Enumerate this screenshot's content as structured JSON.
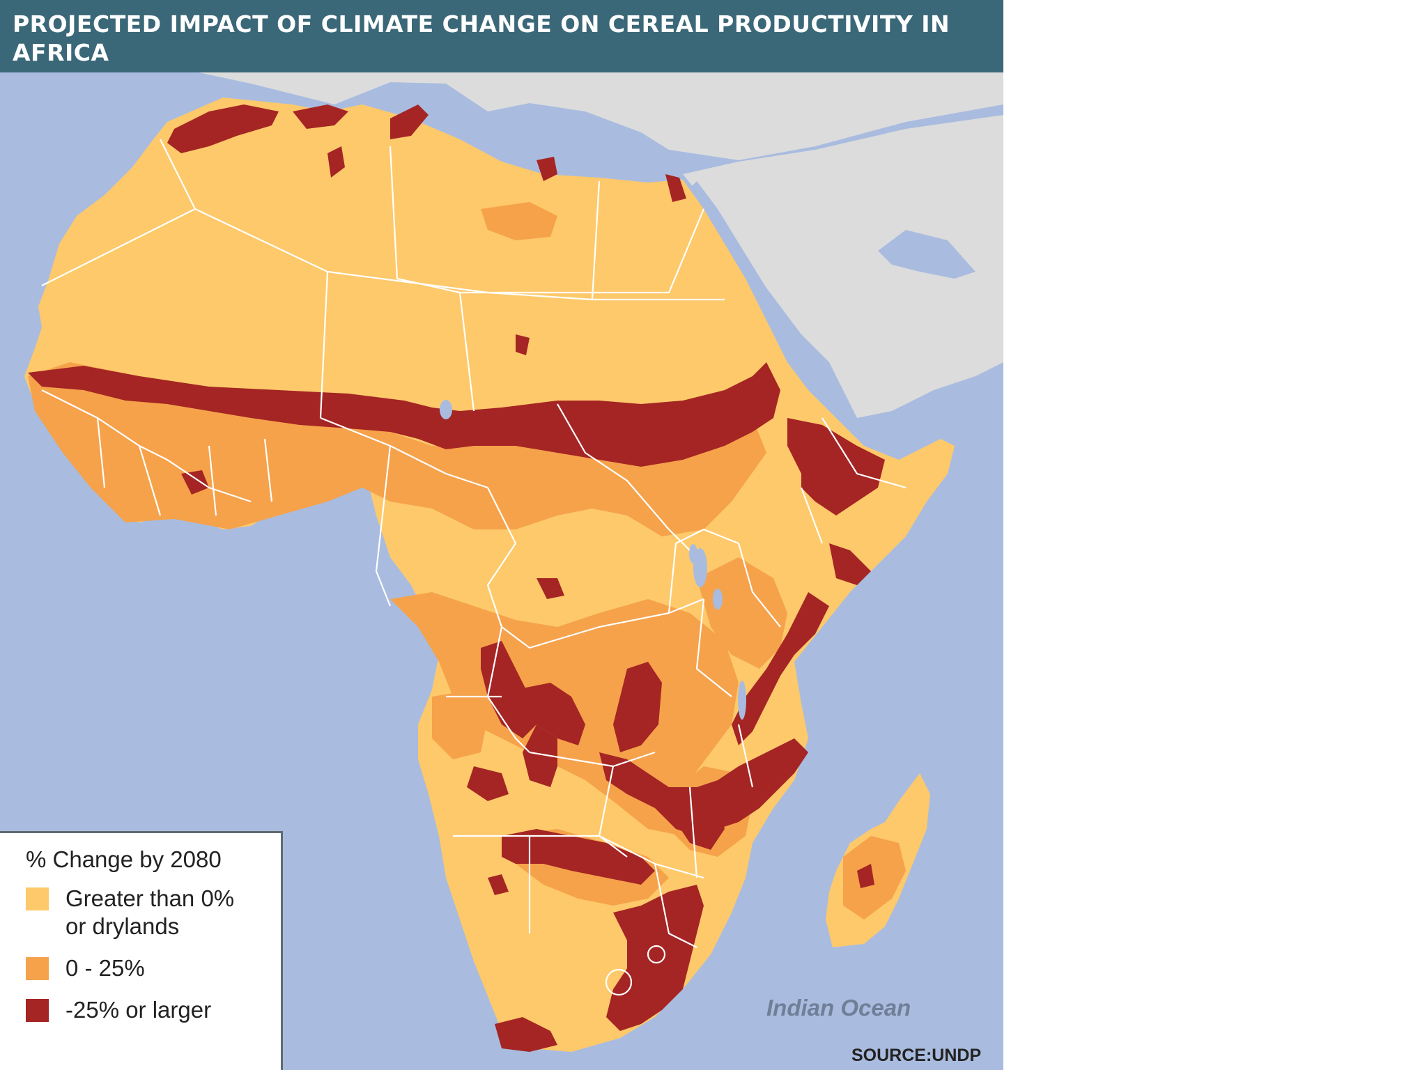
{
  "title": "PROJECTED IMPACT OF CLIMATE CHANGE ON CEREAL PRODUCTIVITY IN AFRICA",
  "colors": {
    "title_bar": "#3b6878",
    "ocean": "#a9bcdf",
    "land_other": "#dcdcdc",
    "land_light": "#fdc96b",
    "land_medium": "#f5a24b",
    "land_dark": "#a42524",
    "borders": "#ffffff"
  },
  "legend": {
    "heading": "% Change by 2080",
    "items": [
      {
        "label": "Greater than 0%\nor drylands",
        "color": "#fdc96b"
      },
      {
        "label": "0 - 25%",
        "color": "#f5a24b"
      },
      {
        "label": "-25% or larger",
        "color": "#a42524"
      }
    ]
  },
  "ocean_label": "Indian Ocean",
  "source": "SOURCE:UNDP"
}
